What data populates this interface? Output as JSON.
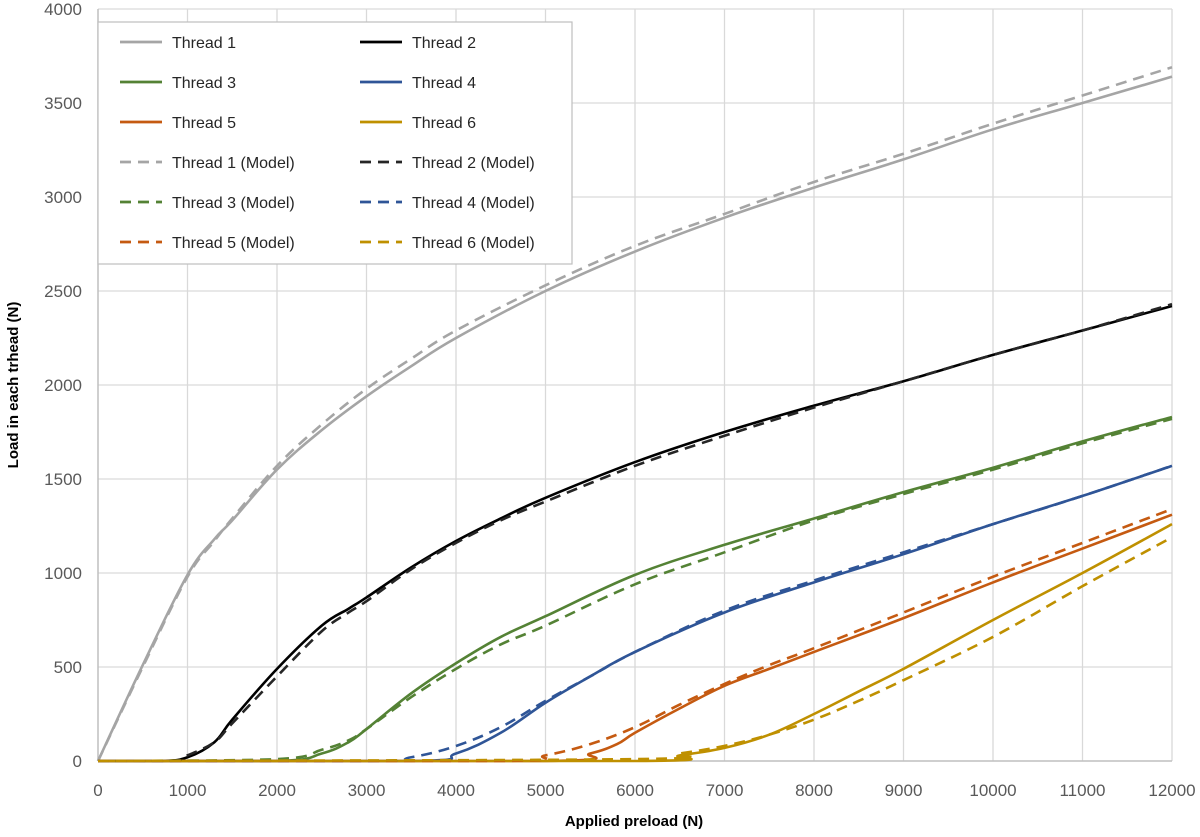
{
  "chart_data": {
    "type": "line",
    "title": "",
    "xlabel": "Applied preload (N)",
    "ylabel": "Load in each trhead (N)",
    "xlim": [
      0,
      12000
    ],
    "ylim": [
      0,
      4000
    ],
    "x_ticks": [
      0,
      1000,
      2000,
      3000,
      4000,
      5000,
      6000,
      7000,
      8000,
      9000,
      10000,
      11000,
      12000
    ],
    "y_ticks": [
      0,
      500,
      1000,
      1500,
      2000,
      2500,
      3000,
      3500,
      4000
    ],
    "grid": true,
    "legend_position": "top-left",
    "series": [
      {
        "name": "Thread 1",
        "color": "#a5a5a5",
        "dashed": false,
        "x": [
          0,
          500,
          1000,
          1300,
          1500,
          2000,
          2500,
          3000,
          3500,
          4000,
          5000,
          6000,
          7000,
          8000,
          9000,
          10000,
          11000,
          12000
        ],
        "y": [
          0,
          510,
          990,
          1180,
          1280,
          1550,
          1760,
          1940,
          2100,
          2250,
          2500,
          2710,
          2890,
          3050,
          3200,
          3360,
          3500,
          3640
        ]
      },
      {
        "name": "Thread 2",
        "color": "#000000",
        "dashed": false,
        "x": [
          0,
          700,
          1000,
          1300,
          1500,
          2000,
          2500,
          2800,
          3000,
          3500,
          4000,
          4500,
          5000,
          6000,
          7000,
          8000,
          9000,
          10000,
          11000,
          12000
        ],
        "y": [
          0,
          0,
          20,
          100,
          220,
          490,
          720,
          810,
          870,
          1030,
          1170,
          1290,
          1400,
          1590,
          1750,
          1890,
          2020,
          2160,
          2290,
          2420
        ]
      },
      {
        "name": "Thread 3",
        "color": "#548235",
        "dashed": false,
        "x": [
          0,
          2000,
          2500,
          2800,
          3000,
          3500,
          4000,
          4500,
          5000,
          6000,
          7000,
          8000,
          9000,
          10000,
          11000,
          12000
        ],
        "y": [
          0,
          0,
          40,
          100,
          170,
          360,
          520,
          660,
          770,
          990,
          1150,
          1290,
          1430,
          1560,
          1700,
          1830
        ]
      },
      {
        "name": "Thread 4",
        "color": "#2f5597",
        "dashed": false,
        "x": [
          0,
          3500,
          4000,
          4500,
          5000,
          5500,
          6000,
          7000,
          8000,
          9000,
          10000,
          11000,
          12000
        ],
        "y": [
          0,
          0,
          40,
          150,
          310,
          450,
          580,
          790,
          950,
          1100,
          1260,
          1410,
          1570
        ]
      },
      {
        "name": "Thread 5",
        "color": "#c55a11",
        "dashed": false,
        "x": [
          0,
          5000,
          5500,
          5800,
          6000,
          6500,
          7000,
          7500,
          8000,
          9000,
          10000,
          11000,
          12000
        ],
        "y": [
          0,
          0,
          40,
          90,
          150,
          280,
          400,
          490,
          580,
          760,
          950,
          1130,
          1310
        ]
      },
      {
        "name": "Thread 6",
        "color": "#bf9000",
        "dashed": false,
        "x": [
          0,
          6000,
          6500,
          7000,
          7500,
          8000,
          8500,
          9000,
          10000,
          11000,
          12000
        ],
        "y": [
          0,
          0,
          30,
          70,
          140,
          250,
          370,
          490,
          750,
          1000,
          1260
        ]
      },
      {
        "name": "Thread 1 (Model)",
        "color": "#a5a5a5",
        "dashed": true,
        "x": [
          0,
          500,
          1000,
          1300,
          1500,
          2000,
          2500,
          3000,
          3500,
          4000,
          5000,
          6000,
          7000,
          8000,
          9000,
          10000,
          11000,
          12000
        ],
        "y": [
          0,
          500,
          980,
          1170,
          1290,
          1570,
          1790,
          1980,
          2140,
          2290,
          2530,
          2740,
          2910,
          3080,
          3230,
          3390,
          3540,
          3690
        ]
      },
      {
        "name": "Thread 2 (Model)",
        "color": "#262626",
        "dashed": true,
        "x": [
          0,
          800,
          1000,
          1300,
          1500,
          2000,
          2500,
          2800,
          3000,
          3500,
          4000,
          4500,
          5000,
          6000,
          7000,
          8000,
          9000,
          10000,
          11000,
          12000
        ],
        "y": [
          0,
          0,
          30,
          100,
          200,
          450,
          690,
          790,
          850,
          1020,
          1160,
          1280,
          1380,
          1570,
          1730,
          1880,
          2020,
          2160,
          2290,
          2430
        ]
      },
      {
        "name": "Thread 3 (Model)",
        "color": "#548235",
        "dashed": true,
        "x": [
          0,
          2000,
          2500,
          2800,
          3000,
          3500,
          4000,
          4500,
          5000,
          6000,
          7000,
          8000,
          9000,
          10000,
          11000,
          12000
        ],
        "y": [
          0,
          10,
          60,
          110,
          170,
          340,
          490,
          620,
          720,
          940,
          1110,
          1280,
          1420,
          1550,
          1690,
          1820
        ]
      },
      {
        "name": "Thread 4 (Model)",
        "color": "#2f5597",
        "dashed": true,
        "x": [
          0,
          3000,
          3500,
          4000,
          4500,
          5000,
          5500,
          6000,
          7000,
          8000,
          9000,
          10000,
          11000,
          12000
        ],
        "y": [
          0,
          0,
          20,
          80,
          180,
          320,
          450,
          580,
          800,
          960,
          1110,
          1260,
          1410,
          1570
        ]
      },
      {
        "name": "Thread 5 (Model)",
        "color": "#c55a11",
        "dashed": true,
        "x": [
          0,
          4500,
          5000,
          5500,
          6000,
          6500,
          7000,
          7500,
          8000,
          9000,
          10000,
          11000,
          12000
        ],
        "y": [
          0,
          0,
          30,
          90,
          180,
          300,
          410,
          510,
          600,
          790,
          980,
          1160,
          1340
        ]
      },
      {
        "name": "Thread 6 (Model)",
        "color": "#bf9000",
        "dashed": true,
        "x": [
          0,
          6000,
          6500,
          7000,
          7500,
          8000,
          8500,
          9000,
          10000,
          11000,
          12000
        ],
        "y": [
          0,
          10,
          40,
          80,
          140,
          220,
          320,
          430,
          660,
          930,
          1190
        ]
      }
    ],
    "legend_order": [
      "Thread 1",
      "Thread 2",
      "Thread 3",
      "Thread 4",
      "Thread 5",
      "Thread 6",
      "Thread 1 (Model)",
      "Thread 2 (Model)",
      "Thread 3 (Model)",
      "Thread 4 (Model)",
      "Thread 5 (Model)",
      "Thread 6 (Model)"
    ]
  }
}
